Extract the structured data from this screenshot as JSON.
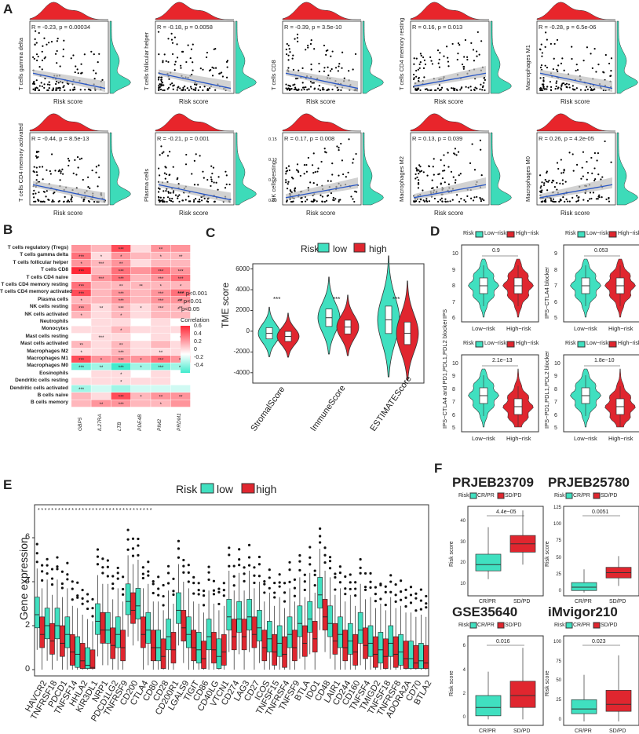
{
  "panel_labels": {
    "A": "A",
    "B": "B",
    "C": "C",
    "D": "D",
    "E": "E",
    "F": "F"
  },
  "colors": {
    "low": "#40e0c0",
    "high": "#e0262f",
    "dens_top": "#e8252b",
    "dens_right": "#3ddbb9",
    "line": "#2a57c4",
    "band": "#bfbfbf"
  },
  "panelA": {
    "xlabel": "Risk score",
    "plots": [
      {
        "ylabel": "T cells gamma delta",
        "stat": "R = -0.23, p = 0.00034",
        "slope": -1
      },
      {
        "ylabel": "T cells follicular helper",
        "stat": "R = -0.18, p = 0.0058",
        "slope": -1
      },
      {
        "ylabel": "T cells CD8",
        "stat": "R = -0.39, p = 3.5e-10",
        "slope": -1
      },
      {
        "ylabel": "T cells CD4 memory resting",
        "stat": "R = 0.16, p = 0.013",
        "slope": 1
      },
      {
        "ylabel": "Macrophages M1",
        "stat": "R = -0.28, p = 6.5e-06",
        "slope": -1
      },
      {
        "ylabel": "T cells CD4 memory activated",
        "stat": "R = -0.44, p = 8.5e-13",
        "slope": -1
      },
      {
        "ylabel": "Plasma cells",
        "stat": "R = -0.21, p = 0.001",
        "slope": -1
      },
      {
        "ylabel": "NK cells resting",
        "stat": "R = 0.17, p = 0.008",
        "slope": 1
      },
      {
        "ylabel": "Macrophages M2",
        "stat": "R = 0.13, p = 0.039",
        "slope": 1
      },
      {
        "ylabel": "Macrophages M0",
        "stat": "R = 0.26, p = 4.2e-05",
        "slope": 1
      }
    ],
    "nk_yticks": [
      "0.15",
      "0.10",
      "0.05",
      "0.00"
    ]
  },
  "panelB": {
    "rows": [
      "T cells regulatory (Tregs)",
      "T cells gamma delta",
      "T cells follicular helper",
      "T cells CD8",
      "T cells CD4 naive",
      "T cells CD4 memory resting",
      "T cells CD4 memory activated",
      "Plasma cells",
      "NK cells resting",
      "NK cells activated",
      "Neutrophils",
      "Monocytes",
      "Mast cells resting",
      "Mast cells activated",
      "Macrophages M2",
      "Macrophages M1",
      "Macrophages M0",
      "Eosinophils",
      "Dendritic cells resting",
      "Dendritic cells activated",
      "B cells naive",
      "B cells memory"
    ],
    "cols": [
      "GBP5",
      "IL27RA",
      "LTB",
      "PDE4B",
      "PIM2",
      "PRDM1"
    ],
    "values": [
      [
        0.3,
        0.2,
        0.5,
        0.1,
        0.3,
        0.3
      ],
      [
        0.4,
        0.1,
        0.3,
        0.2,
        0.2,
        0.2
      ],
      [
        0.3,
        0.2,
        0.3,
        0.1,
        0.2,
        0.2
      ],
      [
        0.6,
        0.2,
        0.4,
        0.3,
        0.4,
        0.3
      ],
      [
        0.1,
        0.3,
        0.4,
        0.2,
        0.3,
        0.4
      ],
      [
        0.4,
        0.2,
        0.2,
        0.2,
        0.2,
        0.2
      ],
      [
        0.5,
        0.2,
        0.3,
        0.2,
        0.3,
        0.4
      ],
      [
        0.2,
        0.2,
        0.3,
        0.2,
        0.3,
        0.3
      ],
      [
        0.3,
        0.1,
        0.2,
        0.1,
        0.2,
        0.2
      ],
      [
        0.2,
        0.1,
        0.2,
        0.1,
        0.2,
        0.2
      ],
      [
        0.0,
        0.1,
        0.1,
        0.0,
        0.1,
        0.0
      ],
      [
        0.1,
        0.1,
        0.2,
        0.1,
        0.1,
        0.1
      ],
      [
        0.0,
        0.1,
        0.1,
        0.0,
        0.1,
        0.0
      ],
      [
        0.2,
        0.1,
        0.2,
        0.1,
        0.2,
        0.1
      ],
      [
        0.1,
        0.1,
        0.2,
        0.1,
        0.1,
        0.1
      ],
      [
        0.5,
        0.3,
        0.3,
        0.3,
        0.4,
        0.3
      ],
      [
        -0.3,
        -0.2,
        -0.4,
        -0.2,
        -0.3,
        -0.2
      ],
      [
        0.0,
        0.1,
        0.1,
        0.0,
        0.1,
        0.0
      ],
      [
        0.1,
        0.1,
        0.1,
        0.1,
        0.1,
        0.0
      ],
      [
        -0.2,
        -0.1,
        -0.2,
        -0.1,
        -0.1,
        -0.1
      ],
      [
        0.2,
        0.1,
        0.5,
        0.2,
        0.3,
        0.3
      ],
      [
        0.2,
        0.3,
        0.3,
        0.2,
        0.2,
        0.3
      ]
    ],
    "stars": [
      [
        "",
        "",
        "***",
        "",
        "**",
        ""
      ],
      [
        "***",
        "*",
        "*",
        "",
        "*",
        "**"
      ],
      [
        "*",
        "***",
        "**",
        "",
        "",
        ""
      ],
      [
        "***",
        "",
        "***",
        "",
        "***",
        "***"
      ],
      [
        "",
        "***",
        "***",
        "",
        "***",
        "***"
      ],
      [
        "***",
        "",
        "**",
        "**",
        "*",
        "*"
      ],
      [
        "***",
        "",
        "***",
        "",
        "***",
        "***"
      ],
      [
        "*",
        "",
        "***",
        "",
        "***",
        "**"
      ],
      [
        "***",
        "**",
        "***",
        "*",
        "***",
        "**"
      ],
      [
        "*",
        "",
        "*",
        "",
        "",
        ""
      ],
      [
        "",
        "",
        "",
        "",
        "",
        ""
      ],
      [
        "",
        "",
        "*",
        "",
        "",
        ""
      ],
      [
        "",
        "***",
        "",
        "",
        "",
        "*"
      ],
      [
        "**",
        "",
        "**",
        "",
        "",
        ""
      ],
      [
        "*",
        "",
        "***",
        "",
        "**",
        ""
      ],
      [
        "***",
        "*",
        "***",
        "*",
        "***",
        "**"
      ],
      [
        "***",
        "**",
        "***",
        "*",
        "***",
        "**"
      ],
      [
        "",
        "",
        "*",
        "",
        "",
        ""
      ],
      [
        "",
        "",
        "*",
        "",
        "",
        ""
      ],
      [
        "***",
        "",
        "",
        "",
        "",
        ""
      ],
      [
        "",
        "",
        "***",
        "*",
        "**",
        "**"
      ],
      [
        "",
        "**",
        "***",
        "",
        "*",
        ""
      ]
    ],
    "sig_legend": [
      "*** p<0.001",
      "** p<0.01",
      "* p<0.05"
    ],
    "corr_title": "Correlation",
    "corr_ticks": [
      "0.6",
      "0.4",
      "0.2",
      "0",
      "-0.2",
      "-0.4"
    ]
  },
  "panelC": {
    "legend_title": "Risk",
    "legend_low": "low",
    "legend_high": "high",
    "ylabel": "TME score",
    "yticks": [
      "6000",
      "4000",
      "2000",
      "0",
      "-2000",
      "-4000"
    ],
    "groups": [
      "StromalScore",
      "ImmuneScore",
      "ESTIMATEScore"
    ],
    "sig": [
      "***",
      "***",
      "***"
    ]
  },
  "panelD": {
    "legend_title": "Risk",
    "legend_low": "Low−risk",
    "legend_high": "High−risk",
    "xticks": [
      "Low−risk",
      "High−risk"
    ],
    "plots": [
      {
        "ylabel": "IPS",
        "p": "0.9",
        "yticks": [
          "10",
          "9",
          "8",
          "7",
          "6"
        ]
      },
      {
        "ylabel": "IPS−CTLA4 blocker",
        "p": "0.053",
        "yticks": [
          "9",
          "8",
          "7",
          "6",
          "5"
        ]
      },
      {
        "ylabel": "IPS−CTLA4 and PD1,PDL1,PDL2 blocker",
        "p": "2.1e−13",
        "yticks": [
          "10",
          "9",
          "8",
          "7",
          "6",
          "5"
        ]
      },
      {
        "ylabel": "IPS−PD1,PDL1,PDL2 blocker",
        "p": "1.8e−10",
        "yticks": [
          "10",
          "9",
          "8",
          "7",
          "6",
          "5"
        ]
      }
    ]
  },
  "panelE": {
    "legend_title": "Risk",
    "legend_low": "low",
    "legend_high": "high",
    "ylabel": "Gene expression",
    "yticks": [
      "6",
      "4",
      "2",
      "0"
    ],
    "genes": [
      "HAVCR2",
      "TNFRSF18",
      "PDCD1",
      "TNFSF14",
      "HHLA2",
      "KIR3DL1",
      "NRP1",
      "PDCD1LG2",
      "TNFRSF9",
      "CD200",
      "CTLA4",
      "CD80",
      "CD28",
      "CD200R1",
      "LGALS9",
      "TIGIT",
      "CD86",
      "CD40LG",
      "VTCN1",
      "CD274",
      "LAG3",
      "CD27",
      "ICOS",
      "TNFSF15",
      "TNFRSF4",
      "TNFSF9",
      "BTLA",
      "IDO1",
      "CD48",
      "LAIR1",
      "CD244",
      "CD160",
      "TNFSF4",
      "TMIGD2",
      "TNFSF18",
      "TNFRSF8",
      "ADORA2A",
      "CD70",
      "BTLA2"
    ],
    "low_medians": [
      2.5,
      2.0,
      2.0,
      1.6,
      0.7,
      0.2,
      2.2,
      1.8,
      1.6,
      3.1,
      2.9,
      1.8,
      1.0,
      1.5,
      2.7,
      1.6,
      0.9,
      1.5,
      0.6,
      2.4,
      2.3,
      2.4,
      1.9,
      1.4,
      1.2,
      1.6,
      2.1,
      2.3,
      3.4,
      2.1,
      1.6,
      1.3,
      1.8,
      1.2,
      0.9,
      1.2,
      0.8,
      0.5,
      0.4
    ],
    "high_medians": [
      1.6,
      1.3,
      1.2,
      0.8,
      0.4,
      0.1,
      1.8,
      1.1,
      1.0,
      2.7,
      1.6,
      1.0,
      0.6,
      0.9,
      1.9,
      1.0,
      0.5,
      0.9,
      0.8,
      1.5,
      1.5,
      1.6,
      1.0,
      0.8,
      0.7,
      1.0,
      1.2,
      1.4,
      2.4,
      1.3,
      1.0,
      0.8,
      1.1,
      0.7,
      0.6,
      0.7,
      0.5,
      0.3,
      0.3
    ],
    "sig": "**********************************"
  },
  "panelF": {
    "legend_title": "Risk",
    "legend_low": "CR/PR",
    "legend_high": "SD/PD",
    "ylabel": "Risk score",
    "xticks": [
      "CR/PR",
      "SD/PD"
    ],
    "plots": [
      {
        "title": "PRJEB23709",
        "p": "4.4e−05",
        "yticks": [
          "40",
          "30",
          "20",
          "10"
        ],
        "yrange": [
          5,
          48
        ],
        "low": [
          13,
          17,
          20,
          25,
          38
        ],
        "high": [
          20,
          26,
          30,
          34,
          46
        ]
      },
      {
        "title": "PRJEB25780",
        "p": "0.0051",
        "yticks": [
          "125",
          "100",
          "75",
          "50",
          "25",
          "0"
        ],
        "yrange": [
          -5,
          130
        ],
        "low": [
          0,
          3,
          8,
          15,
          35
        ],
        "high": [
          10,
          22,
          30,
          38,
          55
        ]
      },
      {
        "title": "GSE35640",
        "p": "0.016",
        "yticks": [
          "6",
          "4",
          "2",
          "0"
        ],
        "yrange": [
          -0.5,
          7
        ],
        "low": [
          0,
          0.3,
          1,
          2,
          4
        ],
        "high": [
          0,
          1,
          2,
          3.2,
          6
        ]
      },
      {
        "title": "iMvigor210",
        "p": "0.023",
        "yticks": [
          "100",
          "75",
          "50",
          "25",
          "0"
        ],
        "yrange": [
          -5,
          110
        ],
        "low": [
          0,
          10,
          16,
          28,
          60
        ],
        "high": [
          0,
          13,
          22,
          40,
          85
        ]
      }
    ]
  }
}
